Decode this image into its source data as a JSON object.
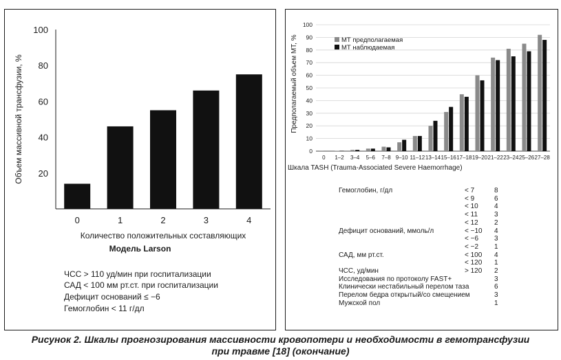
{
  "chart_data": [
    {
      "type": "bar",
      "categories": [
        "0",
        "1",
        "2",
        "3",
        "4"
      ],
      "values": [
        14,
        46,
        55,
        66,
        75
      ],
      "title": "Модель Larson",
      "xlabel": "Количество положительных составляющих",
      "ylabel": "Объем массивной трансфузии, %",
      "yticks": [
        20,
        40,
        60,
        80,
        100
      ],
      "ylim": [
        0,
        100
      ],
      "grid": false,
      "bar_color": "#111111"
    },
    {
      "type": "bar",
      "categories": [
        "0",
        "1–2",
        "3–4",
        "5–6",
        "7–8",
        "9–10",
        "11–12",
        "13–14",
        "15–16",
        "17–18",
        "19–20",
        "21–22",
        "23–24",
        "25–26",
        "27–28"
      ],
      "series": [
        {
          "name": "МТ предполагаемая",
          "color": "#8a8a8a",
          "values": [
            0.1,
            0.3,
            1,
            2,
            3.5,
            7,
            12,
            20,
            31,
            45,
            60,
            74,
            81,
            85,
            92
          ]
        },
        {
          "name": "МТ наблюдаемая",
          "color": "#111111",
          "values": [
            0,
            0.3,
            1,
            2,
            3,
            9,
            12,
            24,
            35,
            43,
            56,
            72,
            75,
            79,
            88
          ]
        }
      ],
      "xlabel": "Шкала TASH (Trauma-Associated Severe Haemorrhage)",
      "ylabel": "Предполагаемый объем МТ, %",
      "yticks": [
        0,
        10,
        20,
        30,
        40,
        50,
        60,
        70,
        80,
        90,
        100
      ],
      "ylim": [
        0,
        100
      ],
      "grid": true,
      "legend_position": "top-left"
    }
  ],
  "larson_criteria": [
    "ЧСС > 110 уд/мин при госпитализации",
    "САД < 100 мм рт.ст. при госпитализации",
    "Дефицит оснований ≤  −6",
    "Гемоглобин < 11 г/дл"
  ],
  "tash_rows": [
    {
      "param": "Гемоглобин, г/дл",
      "cond": "< 7",
      "pts": "8"
    },
    {
      "param": "",
      "cond": "< 9",
      "pts": "6"
    },
    {
      "param": "",
      "cond": "< 10",
      "pts": "4"
    },
    {
      "param": "",
      "cond": "< 11",
      "pts": "3"
    },
    {
      "param": "",
      "cond": "< 12",
      "pts": "2"
    },
    {
      "param": "Дефицит оснований, ммоль/л",
      "cond": "< −10",
      "pts": "4"
    },
    {
      "param": "",
      "cond": "< −6",
      "pts": "3"
    },
    {
      "param": "",
      "cond": "< −2",
      "pts": "1"
    },
    {
      "param": "САД, мм рт.ст.",
      "cond": "< 100",
      "pts": "4"
    },
    {
      "param": "",
      "cond": "< 120",
      "pts": "1"
    },
    {
      "param": "ЧСС, уд/мин",
      "cond": "> 120",
      "pts": "2"
    },
    {
      "param": "Исследования по протоколу FAST+",
      "cond": "",
      "pts": "3"
    },
    {
      "param": "Клинически нестабильный перелом таза",
      "cond": "",
      "pts": "6"
    },
    {
      "param": "Перелом бедра открытый/со смещением",
      "cond": "",
      "pts": "3"
    },
    {
      "param": "Мужской пол",
      "cond": "",
      "pts": "1"
    }
  ],
  "caption": {
    "line1": "Рисунок 2. Шкалы прогнозирования массивности кровопотери и необходимости в гемотрансфузии",
    "line2": "при травме [18] (окончание)"
  }
}
